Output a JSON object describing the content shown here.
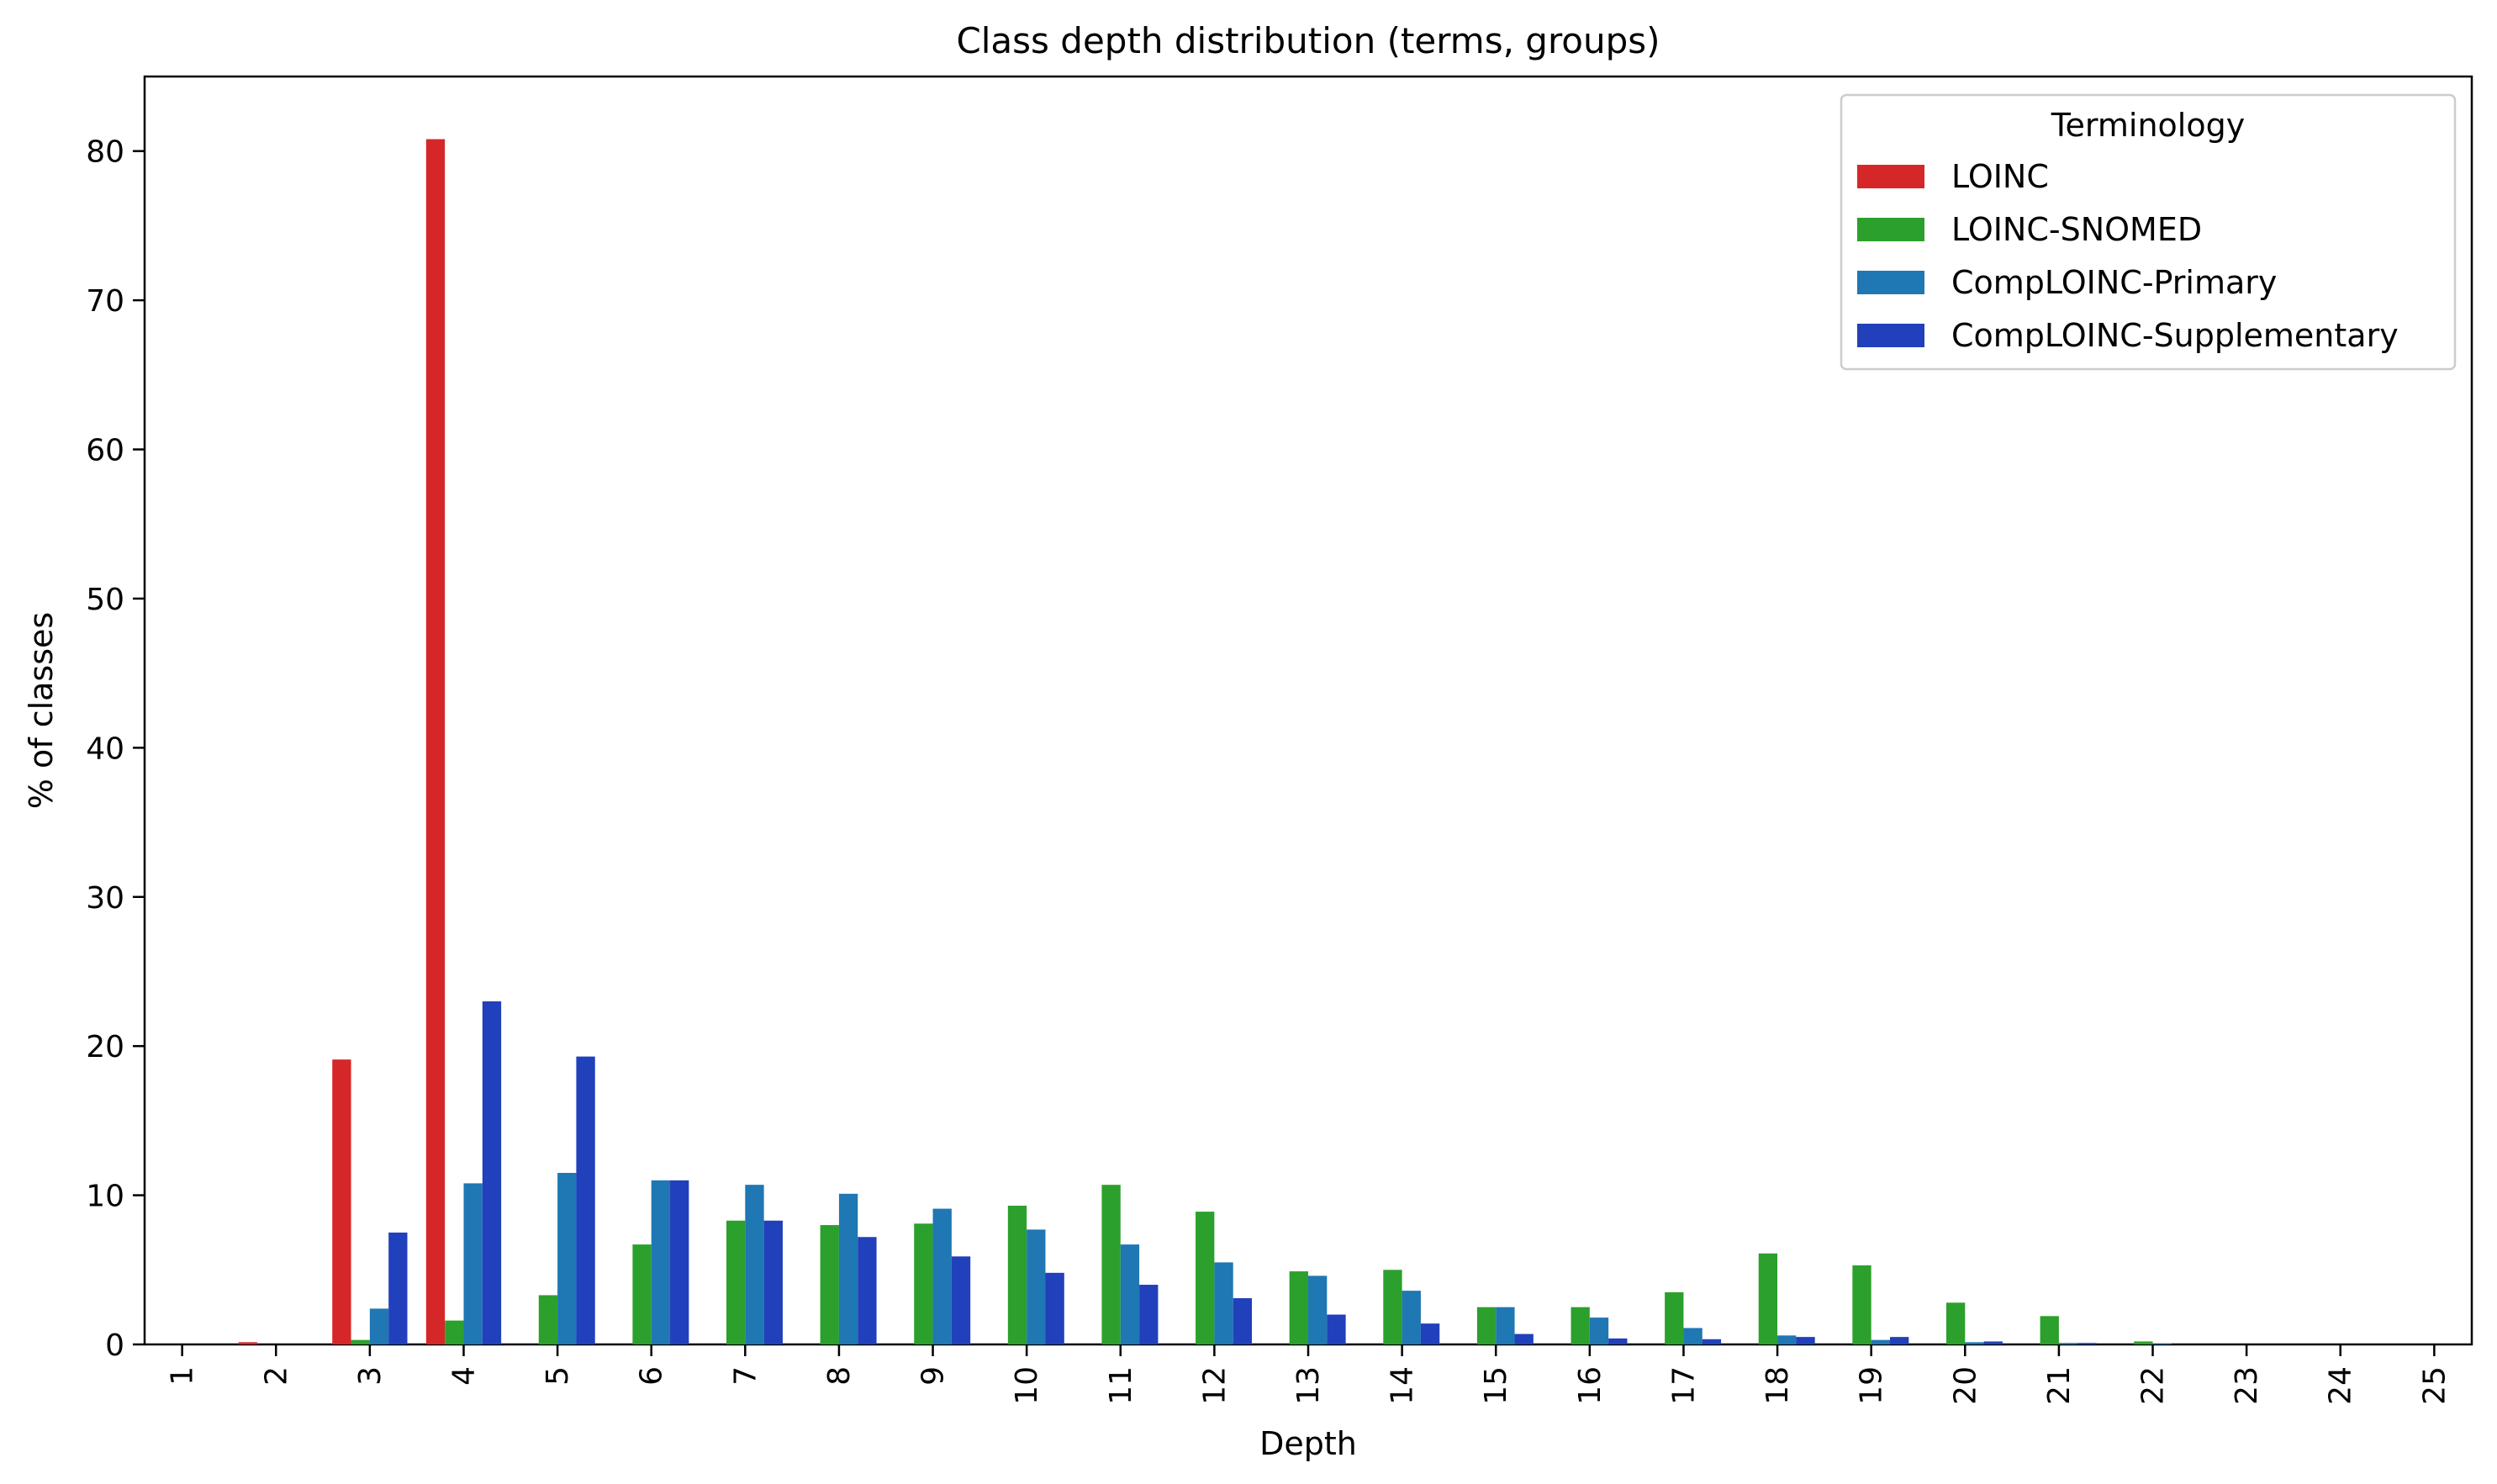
{
  "chart_data": {
    "type": "bar",
    "title": "Class depth distribution (terms, groups)",
    "xlabel": "Depth",
    "ylabel": "% of classes",
    "categories": [
      "1",
      "2",
      "3",
      "4",
      "5",
      "6",
      "7",
      "8",
      "9",
      "10",
      "11",
      "12",
      "13",
      "14",
      "15",
      "16",
      "17",
      "18",
      "19",
      "20",
      "21",
      "22",
      "23",
      "24",
      "25"
    ],
    "ylim": [
      0,
      85
    ],
    "yticks": [
      0,
      10,
      20,
      30,
      40,
      50,
      60,
      70,
      80
    ],
    "grid": false,
    "legend": {
      "title": "Terminology",
      "placement": "top-right"
    },
    "series": [
      {
        "name": "LOINC",
        "color": "#d62728",
        "values": [
          0,
          0.15,
          19.1,
          80.8,
          0,
          0,
          0,
          0,
          0,
          0,
          0,
          0,
          0,
          0,
          0,
          0,
          0,
          0,
          0,
          0,
          0,
          0,
          0,
          0,
          0
        ]
      },
      {
        "name": "LOINC-SNOMED",
        "color": "#2ca02c",
        "values": [
          0,
          0,
          0.3,
          1.6,
          3.3,
          6.7,
          8.3,
          8.0,
          8.1,
          9.3,
          10.7,
          8.9,
          4.9,
          5.0,
          2.5,
          2.5,
          3.5,
          6.1,
          5.3,
          2.8,
          1.9,
          0.2,
          0,
          0,
          0
        ]
      },
      {
        "name": "CompLOINC-Primary",
        "color": "#1f77b4",
        "values": [
          0,
          0,
          2.4,
          10.8,
          11.5,
          11.0,
          10.7,
          10.1,
          9.1,
          7.7,
          6.7,
          5.5,
          4.6,
          3.6,
          2.5,
          1.8,
          1.1,
          0.6,
          0.3,
          0.15,
          0.1,
          0.05,
          0,
          0,
          0
        ]
      },
      {
        "name": "CompLOINC-Supplementary",
        "color": "#2140bb",
        "values": [
          0,
          0,
          7.5,
          23.0,
          19.3,
          11.0,
          8.3,
          7.2,
          5.9,
          4.8,
          4.0,
          3.1,
          2.0,
          1.4,
          0.7,
          0.4,
          0.35,
          0.5,
          0.5,
          0.2,
          0.1,
          0,
          0,
          0,
          0
        ]
      }
    ]
  }
}
